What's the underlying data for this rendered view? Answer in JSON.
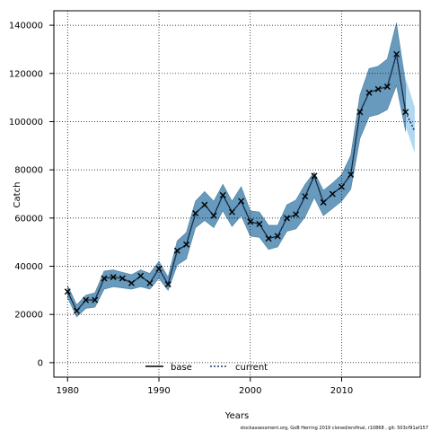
{
  "chart_data": {
    "type": "line",
    "xlabel": "Years",
    "ylabel": "Catch",
    "xlim": [
      1978.5,
      2018.6
    ],
    "ylim": [
      -6000,
      146000
    ],
    "x_ticks": [
      1980,
      1990,
      2000,
      2010
    ],
    "y_ticks": [
      0,
      20000,
      40000,
      60000,
      80000,
      100000,
      120000,
      140000
    ],
    "x_tick_labels": [
      "1980",
      "1990",
      "2000",
      "2010"
    ],
    "y_tick_labels": [
      "0",
      "20000",
      "40000",
      "60000",
      "80000",
      "100000",
      "120000",
      "140000"
    ],
    "grid": true,
    "legend_position": "bottom-center",
    "legend": [
      {
        "label": "base",
        "style": "solid",
        "color": "#000000"
      },
      {
        "label": "current",
        "style": "dotted",
        "color": "#1f3a6b"
      }
    ],
    "colors": {
      "base_band": "#5a8fb3",
      "current_band": "#a9d4ef"
    },
    "observed": {
      "x": [
        1980,
        1981,
        1982,
        1983,
        1984,
        1985,
        1986,
        1987,
        1988,
        1989,
        1990,
        1991,
        1992,
        1993,
        1994,
        1995,
        1996,
        1997,
        1998,
        1999,
        2000,
        2001,
        2002,
        2003,
        2004,
        2005,
        2006,
        2007,
        2008,
        2009,
        2010,
        2011,
        2012,
        2013,
        2014,
        2015,
        2016,
        2017
      ],
      "y": [
        29500,
        21500,
        26000,
        26000,
        35000,
        35500,
        35000,
        33000,
        36000,
        33000,
        39000,
        32500,
        46500,
        49000,
        62000,
        65500,
        61000,
        69500,
        62500,
        67000,
        58500,
        57500,
        51500,
        52500,
        60000,
        61500,
        69000,
        77500,
        66500,
        70000,
        73000,
        78000,
        104000,
        112000,
        113500,
        114500,
        128000,
        104000
      ]
    },
    "series": [
      {
        "name": "base",
        "x": [
          1980,
          1981,
          1982,
          1983,
          1984,
          1985,
          1986,
          1987,
          1988,
          1989,
          1990,
          1991,
          1992,
          1993,
          1994,
          1995,
          1996,
          1997,
          1998,
          1999,
          2000,
          2001,
          2002,
          2003,
          2004,
          2005,
          2006,
          2007,
          2008,
          2009,
          2010,
          2011,
          2012,
          2013,
          2014,
          2015,
          2016,
          2017
        ],
        "y": [
          29500,
          21500,
          26000,
          26000,
          35000,
          35500,
          35000,
          33000,
          36000,
          33000,
          39000,
          32500,
          46500,
          49000,
          62000,
          65500,
          61000,
          69500,
          62500,
          67000,
          58500,
          57500,
          51500,
          52500,
          60000,
          61500,
          69000,
          77500,
          66500,
          70000,
          73000,
          78000,
          104000,
          112000,
          113500,
          114500,
          128000,
          104000
        ],
        "lower": [
          27000,
          19000,
          22500,
          23000,
          30500,
          31500,
          31000,
          30500,
          31500,
          30500,
          35000,
          30000,
          40500,
          43000,
          56000,
          59000,
          56000,
          63000,
          56500,
          61000,
          52500,
          52000,
          47000,
          48000,
          54500,
          55500,
          60500,
          68500,
          61000,
          64000,
          67000,
          72000,
          93000,
          102000,
          103000,
          105000,
          115000,
          96000
        ],
        "upper": [
          32000,
          24000,
          28000,
          29000,
          38000,
          38500,
          37500,
          36500,
          38500,
          37000,
          42000,
          35500,
          50500,
          54000,
          67000,
          71000,
          67000,
          74000,
          67000,
          73000,
          63000,
          62500,
          57000,
          57000,
          65500,
          67500,
          74000,
          79000,
          71500,
          74500,
          78000,
          86000,
          111000,
          122000,
          123000,
          126000,
          141000,
          115000
        ]
      },
      {
        "name": "current",
        "x": [
          1980,
          1981,
          1982,
          1983,
          1984,
          1985,
          1986,
          1987,
          1988,
          1989,
          1990,
          1991,
          1992,
          1993,
          1994,
          1995,
          1996,
          1997,
          1998,
          1999,
          2000,
          2001,
          2002,
          2003,
          2004,
          2005,
          2006,
          2007,
          2008,
          2009,
          2010,
          2011,
          2012,
          2013,
          2014,
          2015,
          2016,
          2017,
          2018
        ],
        "y": [
          29500,
          21500,
          26000,
          26000,
          35000,
          35500,
          35000,
          33000,
          36000,
          33000,
          39000,
          32500,
          46500,
          49000,
          62000,
          65500,
          61000,
          69500,
          62500,
          67000,
          58500,
          57500,
          51500,
          52500,
          60000,
          61500,
          69000,
          77500,
          66500,
          70000,
          73000,
          78000,
          104000,
          112000,
          113500,
          114500,
          128000,
          104000,
          96000
        ],
        "lower": [
          27000,
          19000,
          22500,
          23000,
          30500,
          31500,
          31000,
          30500,
          31500,
          30500,
          35000,
          30000,
          40500,
          43000,
          56000,
          59000,
          56000,
          63000,
          56500,
          61000,
          52500,
          52000,
          47000,
          48000,
          54500,
          55500,
          60500,
          68500,
          61000,
          64000,
          67000,
          72000,
          93000,
          102000,
          103000,
          105000,
          115000,
          98000,
          87000
        ],
        "upper": [
          32000,
          24000,
          28000,
          29000,
          38000,
          38500,
          37500,
          36500,
          38500,
          37000,
          42000,
          35500,
          50500,
          54000,
          67000,
          71000,
          67000,
          74000,
          67000,
          73000,
          63000,
          62500,
          57000,
          57000,
          65500,
          67500,
          74000,
          79000,
          71500,
          74500,
          78000,
          86000,
          111000,
          122000,
          123000,
          126000,
          141000,
          118000,
          106000
        ]
      }
    ]
  },
  "footer": {
    "text": "stockassessment.org, GoB Herring 2019 cloned/ersfinal, r10868 , git: 503cf91af157"
  }
}
